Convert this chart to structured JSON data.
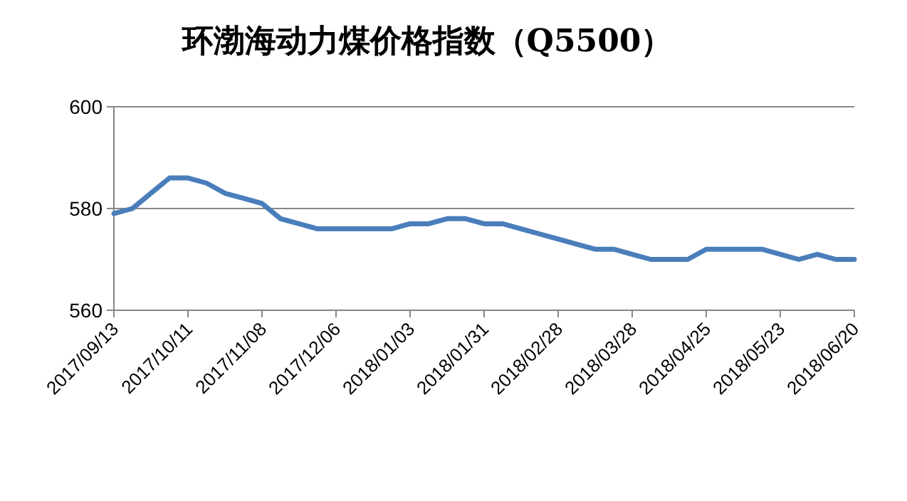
{
  "chart_data": {
    "type": "line",
    "title": "环渤海动力煤价格指数（Q5500）",
    "categories": [
      "2017/09/13",
      null,
      null,
      null,
      "2017/10/11",
      null,
      null,
      null,
      "2017/11/08",
      null,
      null,
      null,
      "2017/12/06",
      null,
      null,
      null,
      "2018/01/03",
      null,
      null,
      null,
      "2018/01/31",
      null,
      null,
      null,
      "2018/02/28",
      null,
      null,
      null,
      "2018/03/28",
      null,
      null,
      null,
      "2018/04/25",
      null,
      null,
      null,
      "2018/05/23",
      null,
      null,
      null,
      "2018/06/20"
    ],
    "series": [
      {
        "color": "#4a7ebb",
        "values": [
          579,
          580,
          583,
          586,
          586,
          585,
          583,
          582,
          581,
          578,
          577,
          576,
          576,
          576,
          576,
          576,
          577,
          577,
          578,
          578,
          577,
          577,
          576,
          575,
          574,
          573,
          572,
          572,
          571,
          570,
          570,
          570,
          572,
          572,
          572,
          572,
          571,
          570,
          571,
          570,
          570
        ]
      }
    ],
    "ylim": [
      560,
      600
    ],
    "yticks": [
      560,
      580,
      600
    ],
    "grid": "y",
    "marker": "none",
    "line_style": "solid"
  }
}
